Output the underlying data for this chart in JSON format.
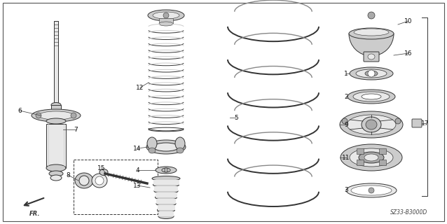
{
  "bg_color": "#ffffff",
  "diagram_code": "SZ33-B3000D",
  "line_color": "#333333",
  "fill_light": "#e8e8e8",
  "fill_mid": "#cccccc",
  "fill_dark": "#aaaaaa"
}
